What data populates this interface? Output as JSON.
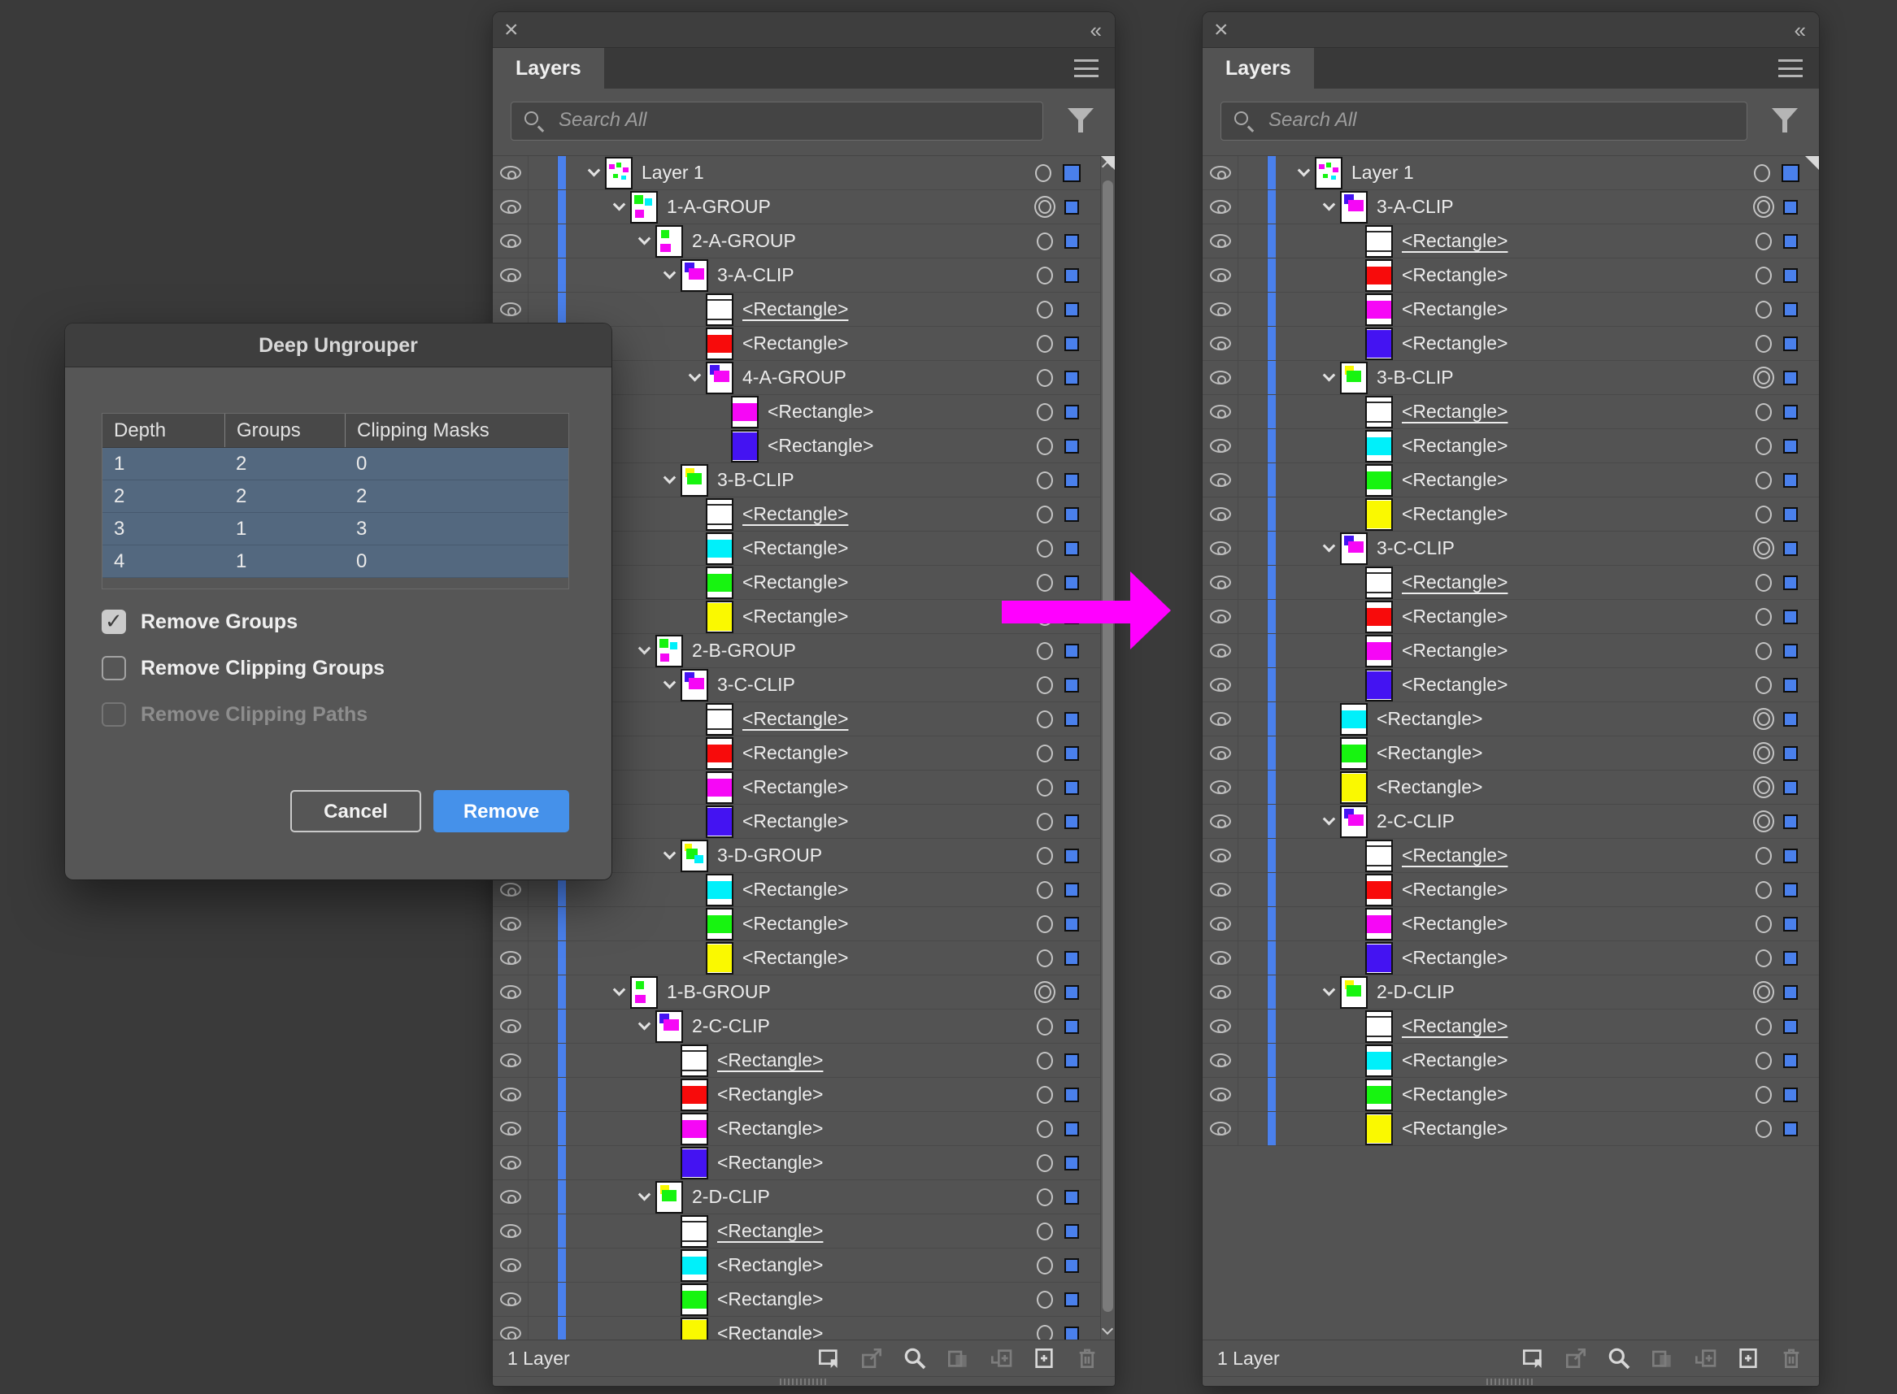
{
  "colors": {
    "accent_blue": "#4a80ec",
    "button_blue": "#4591ea",
    "table_row_blue": "#53687f",
    "arrow_magenta": "#ff00ff",
    "rect_red": "#f80b0b",
    "rect_magenta": "#f607f6",
    "rect_blue": "#4413f2",
    "rect_cyan": "#00f0fa",
    "rect_green": "#17f410",
    "rect_yellow": "#faf900",
    "rect_white": "#ffffff",
    "thumb_line": "#2a2a2a"
  },
  "dialog": {
    "title": "Deep Ungrouper",
    "table": {
      "columns": [
        "Depth",
        "Groups",
        "Clipping Masks"
      ],
      "rows": [
        [
          "1",
          "2",
          "0"
        ],
        [
          "2",
          "2",
          "2"
        ],
        [
          "3",
          "1",
          "3"
        ],
        [
          "4",
          "1",
          "0"
        ]
      ]
    },
    "checkboxes": [
      {
        "label": "Remove Groups",
        "checked": true,
        "disabled": false
      },
      {
        "label": "Remove Clipping Groups",
        "checked": false,
        "disabled": false
      },
      {
        "label": "Remove Clipping Paths",
        "checked": false,
        "disabled": true
      }
    ],
    "cancel_label": "Cancel",
    "remove_label": "Remove"
  },
  "status_icons": [
    {
      "name": "make-clip-frame-icon",
      "enabled": true
    },
    {
      "name": "export-icon",
      "enabled": false
    },
    {
      "name": "locate-object-icon",
      "enabled": true
    },
    {
      "name": "clipping-mask-icon",
      "enabled": false
    },
    {
      "name": "new-sublayer-icon",
      "enabled": false
    },
    {
      "name": "new-layer-icon",
      "enabled": true
    },
    {
      "name": "trash-icon",
      "enabled": false
    }
  ],
  "panels": {
    "left": {
      "tab": "Layers",
      "search_placeholder": "Search All",
      "status": "1 Layer",
      "has_scrollbar": true,
      "rows": [
        {
          "label": "Layer 1",
          "indent": 0,
          "thumb": "multi",
          "chevron": true,
          "target": "plain",
          "underline": false,
          "big_chip": true
        },
        {
          "label": "1-A-GROUP",
          "indent": 1,
          "thumb": "group-gcm",
          "chevron": true,
          "target": "double",
          "underline": false
        },
        {
          "label": "2-A-GROUP",
          "indent": 2,
          "thumb": "group-gm",
          "chevron": true,
          "target": "plain",
          "underline": false
        },
        {
          "label": "3-A-CLIP",
          "indent": 3,
          "thumb": "clip-bm",
          "chevron": true,
          "target": "plain",
          "underline": false
        },
        {
          "label": "<Rectangle>",
          "indent": 4,
          "thumb": "rect-white",
          "chevron": false,
          "target": "plain",
          "underline": true
        },
        {
          "label": "<Rectangle>",
          "indent": 4,
          "thumb": "rect-red",
          "chevron": false,
          "target": "plain",
          "underline": false
        },
        {
          "label": "4-A-GROUP",
          "indent": 4,
          "thumb": "clip-bm",
          "chevron": true,
          "target": "plain",
          "underline": false
        },
        {
          "label": "<Rectangle>",
          "indent": 5,
          "thumb": "rect-magenta",
          "chevron": false,
          "target": "plain",
          "underline": false
        },
        {
          "label": "<Rectangle>",
          "indent": 5,
          "thumb": "rect-blue",
          "chevron": false,
          "target": "plain",
          "underline": false
        },
        {
          "label": "3-B-CLIP",
          "indent": 3,
          "thumb": "clip-yg",
          "chevron": true,
          "target": "plain",
          "underline": false
        },
        {
          "label": "<Rectangle>",
          "indent": 4,
          "thumb": "rect-white",
          "chevron": false,
          "target": "plain",
          "underline": true
        },
        {
          "label": "<Rectangle>",
          "indent": 4,
          "thumb": "rect-cyan",
          "chevron": false,
          "target": "plain",
          "underline": false
        },
        {
          "label": "<Rectangle>",
          "indent": 4,
          "thumb": "rect-green",
          "chevron": false,
          "target": "plain",
          "underline": false
        },
        {
          "label": "<Rectangle>",
          "indent": 4,
          "thumb": "rect-yellow",
          "chevron": false,
          "target": "plain",
          "underline": false
        },
        {
          "label": "2-B-GROUP",
          "indent": 2,
          "thumb": "group-gcm",
          "chevron": true,
          "target": "plain",
          "underline": false
        },
        {
          "label": "3-C-CLIP",
          "indent": 3,
          "thumb": "clip-bm",
          "chevron": true,
          "target": "plain",
          "underline": false
        },
        {
          "label": "<Rectangle>",
          "indent": 4,
          "thumb": "rect-white",
          "chevron": false,
          "target": "plain",
          "underline": true
        },
        {
          "label": "<Rectangle>",
          "indent": 4,
          "thumb": "rect-red",
          "chevron": false,
          "target": "plain",
          "underline": false
        },
        {
          "label": "<Rectangle>",
          "indent": 4,
          "thumb": "rect-magenta",
          "chevron": false,
          "target": "plain",
          "underline": false
        },
        {
          "label": "<Rectangle>",
          "indent": 4,
          "thumb": "rect-blue",
          "chevron": false,
          "target": "plain",
          "underline": false
        },
        {
          "label": "3-D-GROUP",
          "indent": 3,
          "thumb": "group-ygc",
          "chevron": true,
          "target": "plain",
          "underline": false
        },
        {
          "label": "<Rectangle>",
          "indent": 4,
          "thumb": "rect-cyan",
          "chevron": false,
          "target": "plain",
          "underline": false
        },
        {
          "label": "<Rectangle>",
          "indent": 4,
          "thumb": "rect-green",
          "chevron": false,
          "target": "plain",
          "underline": false
        },
        {
          "label": "<Rectangle>",
          "indent": 4,
          "thumb": "rect-yellow",
          "chevron": false,
          "target": "plain",
          "underline": false
        },
        {
          "label": "1-B-GROUP",
          "indent": 1,
          "thumb": "group-gm",
          "chevron": true,
          "target": "double",
          "underline": false
        },
        {
          "label": "2-C-CLIP",
          "indent": 2,
          "thumb": "clip-bm",
          "chevron": true,
          "target": "plain",
          "underline": false
        },
        {
          "label": "<Rectangle>",
          "indent": 3,
          "thumb": "rect-white",
          "chevron": false,
          "target": "plain",
          "underline": true
        },
        {
          "label": "<Rectangle>",
          "indent": 3,
          "thumb": "rect-red",
          "chevron": false,
          "target": "plain",
          "underline": false
        },
        {
          "label": "<Rectangle>",
          "indent": 3,
          "thumb": "rect-magenta",
          "chevron": false,
          "target": "plain",
          "underline": false
        },
        {
          "label": "<Rectangle>",
          "indent": 3,
          "thumb": "rect-blue",
          "chevron": false,
          "target": "plain",
          "underline": false
        },
        {
          "label": "2-D-CLIP",
          "indent": 2,
          "thumb": "clip-yg",
          "chevron": true,
          "target": "plain",
          "underline": false
        },
        {
          "label": "<Rectangle>",
          "indent": 3,
          "thumb": "rect-white",
          "chevron": false,
          "target": "plain",
          "underline": true
        },
        {
          "label": "<Rectangle>",
          "indent": 3,
          "thumb": "rect-cyan",
          "chevron": false,
          "target": "plain",
          "underline": false
        },
        {
          "label": "<Rectangle>",
          "indent": 3,
          "thumb": "rect-green",
          "chevron": false,
          "target": "plain",
          "underline": false
        },
        {
          "label": "<Rectangle>",
          "indent": 3,
          "thumb": "rect-yellow",
          "chevron": false,
          "target": "plain",
          "underline": false
        }
      ]
    },
    "right": {
      "tab": "Layers",
      "search_placeholder": "Search All",
      "status": "1 Layer",
      "has_scrollbar": false,
      "rows": [
        {
          "label": "Layer 1",
          "indent": 0,
          "thumb": "multi",
          "chevron": true,
          "target": "plain",
          "underline": false,
          "big_chip": true
        },
        {
          "label": "3-A-CLIP",
          "indent": 1,
          "thumb": "clip-bm",
          "chevron": true,
          "target": "double",
          "underline": false
        },
        {
          "label": "<Rectangle>",
          "indent": 2,
          "thumb": "rect-white",
          "chevron": false,
          "target": "plain",
          "underline": true
        },
        {
          "label": "<Rectangle>",
          "indent": 2,
          "thumb": "rect-red",
          "chevron": false,
          "target": "plain",
          "underline": false
        },
        {
          "label": "<Rectangle>",
          "indent": 2,
          "thumb": "rect-magenta",
          "chevron": false,
          "target": "plain",
          "underline": false
        },
        {
          "label": "<Rectangle>",
          "indent": 2,
          "thumb": "rect-blue",
          "chevron": false,
          "target": "plain",
          "underline": false
        },
        {
          "label": "3-B-CLIP",
          "indent": 1,
          "thumb": "clip-yg",
          "chevron": true,
          "target": "double",
          "underline": false
        },
        {
          "label": "<Rectangle>",
          "indent": 2,
          "thumb": "rect-white",
          "chevron": false,
          "target": "plain",
          "underline": true
        },
        {
          "label": "<Rectangle>",
          "indent": 2,
          "thumb": "rect-cyan",
          "chevron": false,
          "target": "plain",
          "underline": false
        },
        {
          "label": "<Rectangle>",
          "indent": 2,
          "thumb": "rect-green",
          "chevron": false,
          "target": "plain",
          "underline": false
        },
        {
          "label": "<Rectangle>",
          "indent": 2,
          "thumb": "rect-yellow",
          "chevron": false,
          "target": "plain",
          "underline": false
        },
        {
          "label": "3-C-CLIP",
          "indent": 1,
          "thumb": "clip-bm",
          "chevron": true,
          "target": "double",
          "underline": false
        },
        {
          "label": "<Rectangle>",
          "indent": 2,
          "thumb": "rect-white",
          "chevron": false,
          "target": "plain",
          "underline": true
        },
        {
          "label": "<Rectangle>",
          "indent": 2,
          "thumb": "rect-red",
          "chevron": false,
          "target": "plain",
          "underline": false
        },
        {
          "label": "<Rectangle>",
          "indent": 2,
          "thumb": "rect-magenta",
          "chevron": false,
          "target": "plain",
          "underline": false
        },
        {
          "label": "<Rectangle>",
          "indent": 2,
          "thumb": "rect-blue",
          "chevron": false,
          "target": "plain",
          "underline": false
        },
        {
          "label": "<Rectangle>",
          "indent": 1,
          "thumb": "rect-cyan",
          "chevron": false,
          "target": "double",
          "underline": false
        },
        {
          "label": "<Rectangle>",
          "indent": 1,
          "thumb": "rect-green",
          "chevron": false,
          "target": "double",
          "underline": false
        },
        {
          "label": "<Rectangle>",
          "indent": 1,
          "thumb": "rect-yellow",
          "chevron": false,
          "target": "double",
          "underline": false
        },
        {
          "label": "2-C-CLIP",
          "indent": 1,
          "thumb": "clip-bm",
          "chevron": true,
          "target": "double",
          "underline": false
        },
        {
          "label": "<Rectangle>",
          "indent": 2,
          "thumb": "rect-white",
          "chevron": false,
          "target": "plain",
          "underline": true
        },
        {
          "label": "<Rectangle>",
          "indent": 2,
          "thumb": "rect-red",
          "chevron": false,
          "target": "plain",
          "underline": false
        },
        {
          "label": "<Rectangle>",
          "indent": 2,
          "thumb": "rect-magenta",
          "chevron": false,
          "target": "plain",
          "underline": false
        },
        {
          "label": "<Rectangle>",
          "indent": 2,
          "thumb": "rect-blue",
          "chevron": false,
          "target": "plain",
          "underline": false
        },
        {
          "label": "2-D-CLIP",
          "indent": 1,
          "thumb": "clip-yg",
          "chevron": true,
          "target": "double",
          "underline": false
        },
        {
          "label": "<Rectangle>",
          "indent": 2,
          "thumb": "rect-white",
          "chevron": false,
          "target": "plain",
          "underline": true
        },
        {
          "label": "<Rectangle>",
          "indent": 2,
          "thumb": "rect-cyan",
          "chevron": false,
          "target": "plain",
          "underline": false
        },
        {
          "label": "<Rectangle>",
          "indent": 2,
          "thumb": "rect-green",
          "chevron": false,
          "target": "plain",
          "underline": false
        },
        {
          "label": "<Rectangle>",
          "indent": 2,
          "thumb": "rect-yellow",
          "chevron": false,
          "target": "plain",
          "underline": false
        }
      ]
    }
  }
}
